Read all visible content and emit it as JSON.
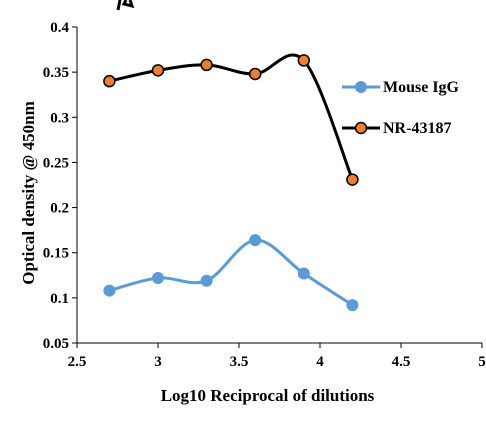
{
  "chart_data": {
    "type": "line",
    "title": "",
    "xlabel": "Log10 Reciprocal of dilutions",
    "ylabel": "Optical density @ 450nm",
    "xlim": [
      2.5,
      5
    ],
    "ylim": [
      0.05,
      0.4
    ],
    "xticks": [
      "2.5",
      "3",
      "3.5",
      "4",
      "4.5",
      "5"
    ],
    "yticks": [
      "0.05",
      "0.1",
      "0.15",
      "0.2",
      "0.25",
      "0.3",
      "0.35",
      "0.4"
    ],
    "smooth": true,
    "grid": false,
    "legend_position": "right",
    "series": [
      {
        "name": "Mouse IgG",
        "color": "#5b9bd5",
        "marker_color": "#5b9bd5",
        "x": [
          2.7,
          3.0,
          3.3,
          3.6,
          3.9,
          4.2
        ],
        "y": [
          0.108,
          0.122,
          0.119,
          0.164,
          0.127,
          0.092
        ]
      },
      {
        "name": "NR-43187",
        "color": "#000000",
        "marker_color": "#ed7d31",
        "x": [
          2.7,
          3.0,
          3.3,
          3.6,
          3.9,
          4.2
        ],
        "y": [
          0.34,
          0.352,
          0.358,
          0.348,
          0.363,
          0.231
        ]
      }
    ]
  }
}
